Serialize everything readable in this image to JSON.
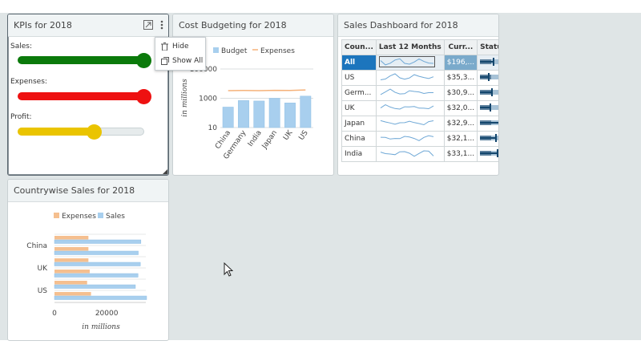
{
  "kpi": {
    "title": "KPIs for 2018",
    "sales_label": "Sales:",
    "expenses_label": "Expenses:",
    "profit_label": "Profit:",
    "sales_level": 1.0,
    "expenses_level": 1.0,
    "profit_level": 0.6,
    "colors": {
      "sales": "#0b7a0b",
      "expenses": "#ee1111",
      "profit": "#eac400"
    }
  },
  "menu": {
    "hide": "Hide",
    "show_all": "Show All"
  },
  "budget": {
    "title": "Cost Budgeting for 2018",
    "ylabel": "in millions"
  },
  "sales": {
    "title": "Sales Dashboard for 2018",
    "headers": [
      "Coun...",
      "Last 12 Months",
      "Curr...",
      "Status"
    ],
    "rows": [
      {
        "country": "All",
        "current": "$196,..."
      },
      {
        "country": "US",
        "current": "$35,3..."
      },
      {
        "country": "Germ...",
        "current": "$30,9..."
      },
      {
        "country": "UK",
        "current": "$32,0..."
      },
      {
        "country": "Japan",
        "current": "$32,9..."
      },
      {
        "country": "China",
        "current": "$32,1..."
      },
      {
        "country": "India",
        "current": "$33,1..."
      }
    ]
  },
  "country": {
    "title": "Countrywise Sales for 2018",
    "xlabel": "in millions"
  },
  "chart_data": [
    {
      "type": "bar",
      "categories": [
        "China",
        "Germany",
        "India",
        "Japan",
        "UK",
        "US"
      ],
      "series": [
        {
          "name": "Budget",
          "values": [
            250,
            700,
            650,
            1000,
            480,
            1400
          ]
        },
        {
          "name": "Expenses",
          "values": [
            3300,
            3400,
            3300,
            3500,
            3400,
            3700
          ]
        }
      ],
      "ylabel": "in millions",
      "yscale": "log",
      "yticks": [
        "10",
        "1000",
        "100000"
      ],
      "legend": "top"
    },
    {
      "type": "bar",
      "orientation": "horizontal",
      "categories": [
        "US",
        "?",
        "UK",
        "?",
        "China",
        "?"
      ],
      "tick_labels": [
        "US",
        "UK",
        "China"
      ],
      "series": [
        {
          "name": "Expenses",
          "values": [
            14000,
            12500,
            13500,
            13000,
            13000,
            13000
          ]
        },
        {
          "name": "Sales",
          "values": [
            35300,
            31000,
            32000,
            32900,
            32100,
            33100
          ]
        }
      ],
      "xticks": [
        "0",
        "20000"
      ],
      "xlabel": "in millions",
      "legend": "top"
    }
  ]
}
